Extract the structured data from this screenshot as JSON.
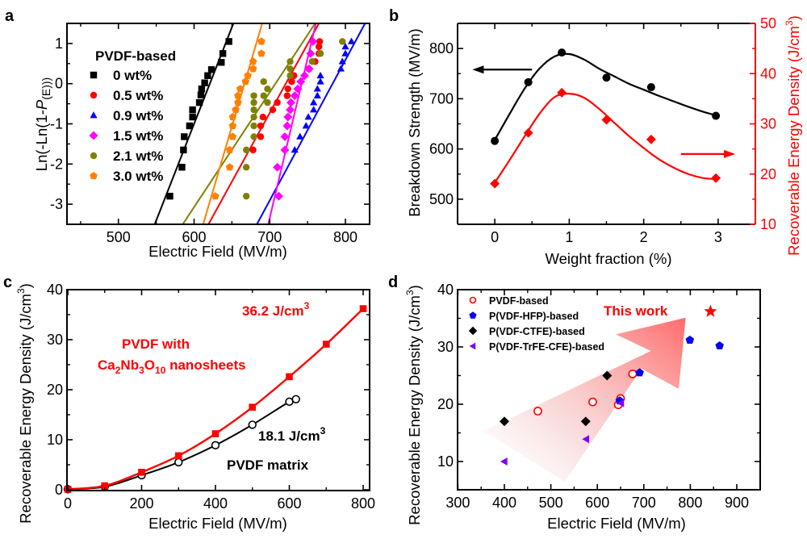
{
  "figure": {
    "panel_labels": [
      "a",
      "b",
      "c",
      "d"
    ]
  },
  "chart_data": [
    {
      "panel": "a",
      "type": "scatter",
      "title": "",
      "xlabel": "Electric Field (MV/m)",
      "ylabel_parts": [
        "Ln(-Ln(1-",
        "P",
        "(E)))"
      ],
      "xlim": [
        432,
        832
      ],
      "ylim": [
        -3.5,
        1.5
      ],
      "xticks": [
        500,
        600,
        700,
        800
      ],
      "yticks": [
        1,
        0,
        -1,
        -2,
        -3
      ],
      "minor_x": [
        450,
        550,
        650,
        750
      ],
      "minor_y": [
        0.5,
        -0.5,
        -1.5,
        -2.5
      ],
      "legend_title": "PVDF-based",
      "legend_placement": "top-left",
      "grid": false,
      "series": [
        {
          "name": "0 wt%",
          "color": "#000000",
          "marker": "square",
          "x": [
            568,
            584,
            586,
            587,
            594,
            598,
            598,
            607,
            609,
            610,
            614,
            618,
            623,
            636,
            638,
            646
          ],
          "y": [
            -2.8,
            -2.08,
            -1.65,
            -1.32,
            -1.05,
            -0.83,
            -0.65,
            -0.47,
            -0.28,
            -0.13,
            0.02,
            0.2,
            0.35,
            0.53,
            0.75,
            1.05
          ],
          "fit": [
            [
              548,
              -3.5
            ],
            [
              652,
              1.5
            ]
          ]
        },
        {
          "name": "0.5 wt%",
          "color": "#ff0000",
          "marker": "circle",
          "x": [
            678,
            688,
            688,
            691,
            704,
            710,
            723,
            724,
            729,
            732,
            752,
            760,
            765,
            765,
            766
          ],
          "y": [
            -1.65,
            -1.32,
            -1.05,
            -0.83,
            -0.65,
            -0.47,
            -0.3,
            -0.13,
            0.05,
            0.2,
            0.37,
            0.55,
            0.75,
            0.92,
            1.05
          ],
          "fit": [
            [
              619,
              -3.5
            ],
            [
              765,
              1.5
            ]
          ]
        },
        {
          "name": "0.9 wt%",
          "color": "#0000ff",
          "marker": "triangle",
          "x": [
            733,
            740,
            748,
            751,
            758,
            758,
            763,
            763,
            767,
            767,
            794,
            796,
            800,
            800,
            808
          ],
          "y": [
            -1.65,
            -1.32,
            -1.05,
            -0.83,
            -0.65,
            -0.47,
            -0.3,
            -0.13,
            0.05,
            0.2,
            0.37,
            0.55,
            0.75,
            0.92,
            1.05
          ],
          "fit": [
            [
              683,
              -3.5
            ],
            [
              826,
              1.5
            ]
          ]
        },
        {
          "name": "1.5 wt%",
          "color": "#ff00ff",
          "marker": "diamond",
          "x": [
            712,
            710,
            720,
            720,
            723,
            724,
            727,
            728,
            733,
            737,
            741,
            746,
            752,
            754,
            757
          ],
          "y": [
            -2.8,
            -2.08,
            -1.65,
            -1.32,
            -1.05,
            -0.83,
            -0.65,
            -0.47,
            -0.3,
            -0.13,
            0.05,
            0.2,
            0.37,
            0.75,
            1.05
          ],
          "fit": [
            [
              698,
              -3.5
            ],
            [
              761,
              1.5
            ]
          ]
        },
        {
          "name": "2.1 wt%",
          "color": "#808000",
          "marker": "circle",
          "x": [
            669,
            669,
            669,
            679,
            679,
            679,
            679,
            679,
            679,
            692,
            692,
            697,
            697,
            727,
            727,
            727,
            756,
            767,
            796
          ],
          "y": [
            -2.8,
            -2.08,
            -1.65,
            -1.32,
            -1.05,
            -0.83,
            -0.65,
            -0.3,
            -0.47,
            -0.3,
            0.05,
            -0.47,
            -0.13,
            0.2,
            0.37,
            0.55,
            0.55,
            0.75,
            1.05
          ],
          "fit": [
            [
              585,
              -3.5
            ],
            [
              760,
              1.5
            ]
          ]
        },
        {
          "name": "3.0 wt%",
          "color": "#ff8000",
          "marker": "pentagon",
          "x": [
            628,
            647,
            647,
            651,
            651,
            651,
            655,
            658,
            658,
            661,
            668,
            671,
            678,
            678,
            689,
            689
          ],
          "y": [
            -2.8,
            -2.08,
            -1.65,
            -1.32,
            -1.05,
            -0.83,
            -0.65,
            -0.47,
            -0.3,
            -0.13,
            0.05,
            0.2,
            0.37,
            0.55,
            0.75,
            1.05
          ],
          "fit": [
            [
              612,
              -3.5
            ],
            [
              690,
              1.5
            ]
          ]
        }
      ]
    },
    {
      "panel": "b",
      "type": "line",
      "title": "",
      "xlabel": "Weight fraction (%)",
      "ylabel_left": "Breakdown Strength (MV/m)",
      "ylabel_right_parts": [
        "Recoverable Energy Density (J/cm",
        "3",
        ")"
      ],
      "xlim": [
        -0.5,
        3.5
      ],
      "ylim_left": [
        450,
        850
      ],
      "ylim_right": [
        10,
        50
      ],
      "xticks": [
        0,
        1,
        2,
        3
      ],
      "minor_x": [
        0.5,
        1.5,
        2.5
      ],
      "yticks_left": [
        500,
        600,
        700,
        800
      ],
      "minor_y_left": [
        550,
        650,
        750
      ],
      "yticks_right": [
        10,
        20,
        30,
        40,
        50
      ],
      "minor_y_right": [
        15,
        25,
        35,
        45
      ],
      "grid": false,
      "series": [
        {
          "name": "Breakdown Strength",
          "axis": "left",
          "color": "#000000",
          "marker": "circle",
          "x": [
            0,
            0.45,
            0.9,
            1.5,
            2.1,
            2.97
          ],
          "values": [
            616,
            733,
            792,
            742,
            723,
            666
          ],
          "fit_x": [
            0,
            0.2,
            0.4,
            0.6,
            0.8,
            1.0,
            1.2,
            1.4,
            1.6,
            1.8,
            2.0,
            2.2,
            2.4,
            2.6,
            2.8,
            2.97
          ],
          "fit_y": [
            618,
            670,
            720,
            760,
            784,
            789,
            778,
            760,
            745,
            730,
            718,
            706,
            695,
            684,
            674,
            667
          ]
        },
        {
          "name": "Recoverable Energy Density",
          "axis": "right",
          "color": "#ff0000",
          "marker": "diamond",
          "x": [
            0,
            0.45,
            0.9,
            1.5,
            2.1,
            2.97
          ],
          "values": [
            18.1,
            28.2,
            36.2,
            30.8,
            26.9,
            19.2
          ],
          "fit_x": [
            0,
            0.2,
            0.4,
            0.6,
            0.8,
            1.0,
            1.2,
            1.4,
            1.6,
            1.8,
            2.0,
            2.2,
            2.4,
            2.6,
            2.8,
            2.97
          ],
          "fit_y": [
            18.3,
            22.8,
            27.5,
            32.0,
            35.3,
            36.0,
            35.2,
            33.0,
            30.3,
            27.6,
            25.2,
            23.0,
            21.3,
            20.0,
            19.2,
            19.0
          ]
        }
      ],
      "arrows": [
        {
          "direction": "left",
          "color": "#000000",
          "y_value_left_axis": 758,
          "x_from": 0.5,
          "x_to": -0.3
        },
        {
          "direction": "right",
          "color": "#ff0000",
          "y_value_right_axis": 24,
          "x_from": 2.5,
          "x_to": 3.23
        }
      ]
    },
    {
      "panel": "c",
      "type": "line",
      "title": "",
      "xlabel": "Electric Field (MV/m)",
      "ylabel_parts": [
        "Recoverable Energy Density (J/cm",
        "3",
        ")"
      ],
      "xlim": [
        0,
        820
      ],
      "ylim": [
        0,
        40
      ],
      "xticks": [
        0,
        200,
        400,
        600,
        800
      ],
      "minor_x": [
        100,
        300,
        500,
        700
      ],
      "yticks": [
        0,
        10,
        20,
        30,
        40
      ],
      "minor_y": [
        5,
        15,
        25,
        35
      ],
      "grid": false,
      "series": [
        {
          "name": "PVDF with Ca2Nb3O10 nanosheets",
          "color": "#ff0000",
          "marker": "filled-square",
          "x": [
            0,
            100,
            200,
            300,
            400,
            500,
            600,
            700,
            800
          ],
          "values": [
            0.1,
            0.8,
            3.5,
            6.8,
            11.2,
            16.5,
            22.6,
            29.1,
            36.2
          ]
        },
        {
          "name": "PVDF matrix",
          "color": "#000000",
          "marker": "open-circle",
          "x": [
            0,
            100,
            200,
            300,
            400,
            500,
            600,
            618
          ],
          "values": [
            0.1,
            0.6,
            2.9,
            5.5,
            8.9,
            13.0,
            17.6,
            18.1
          ]
        }
      ],
      "annotations": [
        {
          "text": "36.2 J/cm",
          "sup": "3",
          "color": "#ff0000"
        },
        {
          "text_line1": "PVDF with",
          "color": "#ff0000"
        },
        {
          "formula": [
            [
              "Ca",
              ""
            ],
            [
              "2",
              "sub"
            ],
            [
              "Nb",
              ""
            ],
            [
              "3",
              "sub"
            ],
            [
              "O",
              ""
            ],
            [
              "10",
              "sub"
            ],
            [
              " nanosheets",
              ""
            ]
          ],
          "color": "#ff0000"
        },
        {
          "text": "18.1 J/cm",
          "sup": "3",
          "color": "#000000"
        },
        {
          "text": "PVDF matrix",
          "color": "#000000"
        }
      ]
    },
    {
      "panel": "d",
      "type": "scatter",
      "title": "",
      "xlabel": "Electric Field (MV/m)",
      "ylabel_parts": [
        "Recoverable Energy Density (J/cm",
        "3",
        ")"
      ],
      "xlim": [
        300,
        950
      ],
      "ylim": [
        5,
        40
      ],
      "xticks": [
        300,
        400,
        500,
        600,
        700,
        800,
        900
      ],
      "minor_x": [
        350,
        450,
        550,
        650,
        750,
        850
      ],
      "yticks": [
        10,
        20,
        30,
        40
      ],
      "minor_y": [
        15,
        25,
        35
      ],
      "legend_placement": "top-left",
      "grid": false,
      "series": [
        {
          "name": "PVDF-based",
          "color": "#ff0000",
          "marker": "open-circle",
          "x": [
            472,
            590,
            645,
            650,
            676
          ],
          "values": [
            18.8,
            20.4,
            19.9,
            21.0,
            25.3
          ]
        },
        {
          "name": "P(VDF-HFP)-based",
          "color": "#0000ff",
          "marker": "pentagon",
          "x": [
            648,
            691,
            799,
            863
          ],
          "values": [
            20.6,
            25.5,
            31.2,
            30.2
          ]
        },
        {
          "name": "P(VDF-CTFE)-based",
          "color": "#000000",
          "marker": "diamond",
          "x": [
            400,
            575,
            621
          ],
          "values": [
            17.0,
            17.0,
            25.0
          ]
        },
        {
          "name": "P(VDF-TrFE-CFE)-based",
          "color": "#8000ff",
          "marker": "left-triangle",
          "x": [
            400,
            576,
            651
          ],
          "values": [
            10.0,
            13.9,
            20.2
          ]
        }
      ],
      "highlight": {
        "label": "This work",
        "marker": "star",
        "color": "#ff0000",
        "x": 800,
        "value": 36.2
      },
      "arrow": {
        "color": "#ff6060",
        "from": [
          470,
          12
        ],
        "to": [
          790,
          35
        ],
        "style": "gradient-wide"
      }
    }
  ]
}
